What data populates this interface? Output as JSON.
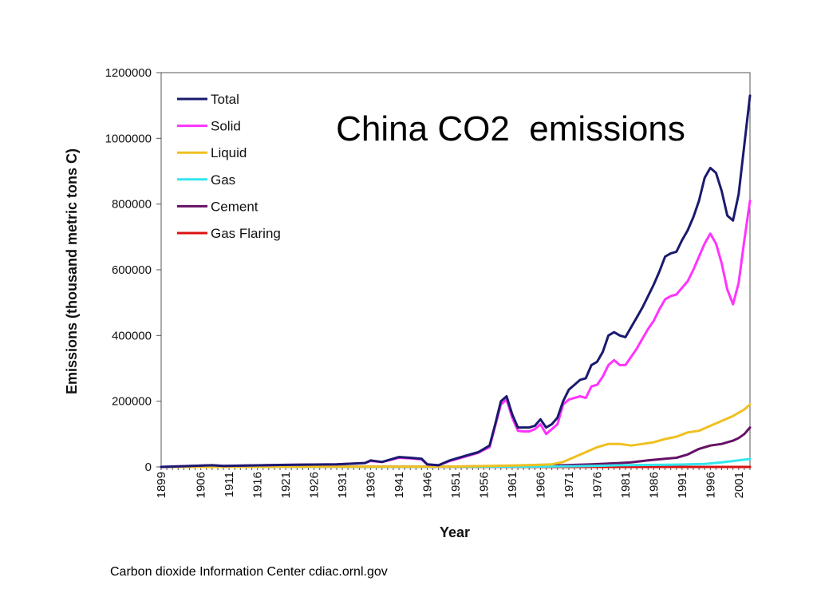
{
  "source_note": "Carbon dioxide Information Center cdiac.ornl.gov",
  "chart_data": {
    "type": "line",
    "title": "China CO2  emissions",
    "xlabel": "Year",
    "ylabel": "Emissions (thousand metric tons C)",
    "ylim": [
      0,
      1200000
    ],
    "yticks": [
      0,
      200000,
      400000,
      600000,
      800000,
      1000000,
      1200000
    ],
    "xticks": [
      1899,
      1906,
      1911,
      1916,
      1921,
      1926,
      1931,
      1936,
      1941,
      1946,
      1951,
      1956,
      1961,
      1966,
      1971,
      1976,
      1981,
      1986,
      1991,
      1996,
      2001
    ],
    "xlim": [
      1899,
      2003
    ],
    "legend_position": "top-left",
    "grid": false,
    "series": [
      {
        "name": "Total",
        "color": "#1a1a6e",
        "x": [
          1899,
          1908,
          1910,
          1920,
          1930,
          1935,
          1936,
          1938,
          1941,
          1943,
          1945,
          1946,
          1948,
          1950,
          1952,
          1954,
          1955,
          1956,
          1957,
          1958,
          1959,
          1960,
          1961,
          1962,
          1963,
          1964,
          1965,
          1966,
          1967,
          1968,
          1969,
          1970,
          1971,
          1972,
          1973,
          1974,
          1975,
          1976,
          1977,
          1978,
          1979,
          1980,
          1981,
          1982,
          1983,
          1984,
          1985,
          1986,
          1987,
          1988,
          1989,
          1990,
          1991,
          1992,
          1993,
          1994,
          1995,
          1996,
          1997,
          1998,
          1999,
          2000,
          2001,
          2002,
          2003
        ],
        "y": [
          0,
          5000,
          3000,
          6000,
          8000,
          12000,
          20000,
          15000,
          30000,
          28000,
          25000,
          8000,
          5000,
          20000,
          30000,
          40000,
          45000,
          55000,
          65000,
          130000,
          200000,
          215000,
          160000,
          120000,
          120000,
          120000,
          125000,
          145000,
          120000,
          130000,
          150000,
          200000,
          235000,
          250000,
          265000,
          270000,
          310000,
          320000,
          350000,
          400000,
          410000,
          400000,
          395000,
          425000,
          455000,
          485000,
          520000,
          555000,
          595000,
          640000,
          650000,
          655000,
          690000,
          720000,
          760000,
          810000,
          880000,
          910000,
          895000,
          840000,
          765000,
          750000,
          830000,
          980000,
          1130000
        ]
      },
      {
        "name": "Solid",
        "color": "#ff33ff",
        "x": [
          1899,
          1908,
          1910,
          1920,
          1930,
          1935,
          1936,
          1938,
          1941,
          1943,
          1945,
          1946,
          1948,
          1950,
          1952,
          1954,
          1955,
          1956,
          1957,
          1958,
          1959,
          1960,
          1961,
          1962,
          1963,
          1964,
          1965,
          1966,
          1967,
          1968,
          1969,
          1970,
          1971,
          1972,
          1973,
          1974,
          1975,
          1976,
          1977,
          1978,
          1979,
          1980,
          1981,
          1982,
          1983,
          1984,
          1985,
          1986,
          1987,
          1988,
          1989,
          1990,
          1991,
          1992,
          1993,
          1994,
          1995,
          1996,
          1997,
          1998,
          1999,
          2000,
          2001,
          2002,
          2003
        ],
        "y": [
          0,
          5000,
          3000,
          6000,
          8000,
          12000,
          18000,
          15000,
          28000,
          26000,
          23000,
          7000,
          5000,
          18000,
          28000,
          38000,
          43000,
          52000,
          60000,
          125000,
          190000,
          205000,
          150000,
          110000,
          108000,
          108000,
          115000,
          130000,
          100000,
          115000,
          130000,
          190000,
          205000,
          210000,
          215000,
          210000,
          245000,
          250000,
          275000,
          310000,
          325000,
          310000,
          310000,
          335000,
          360000,
          390000,
          420000,
          445000,
          480000,
          510000,
          520000,
          525000,
          545000,
          565000,
          600000,
          640000,
          680000,
          710000,
          680000,
          620000,
          540000,
          495000,
          560000,
          690000,
          810000
        ]
      },
      {
        "name": "Liquid",
        "color": "#f0c020",
        "x": [
          1899,
          1950,
          1960,
          1965,
          1968,
          1970,
          1972,
          1974,
          1976,
          1978,
          1980,
          1982,
          1984,
          1986,
          1988,
          1990,
          1992,
          1994,
          1996,
          1998,
          2000,
          2002,
          2003
        ],
        "y": [
          0,
          1000,
          4000,
          6000,
          8000,
          15000,
          30000,
          45000,
          60000,
          70000,
          70000,
          65000,
          70000,
          75000,
          85000,
          92000,
          105000,
          110000,
          125000,
          140000,
          155000,
          175000,
          190000
        ]
      },
      {
        "name": "Gas",
        "color": "#33e6ee",
        "x": [
          1899,
          1960,
          1965,
          1970,
          1975,
          1980,
          1985,
          1990,
          1995,
          1998,
          2000,
          2002,
          2003
        ],
        "y": [
          0,
          500,
          1000,
          2000,
          3000,
          5000,
          6000,
          7000,
          9000,
          14000,
          18000,
          22000,
          24000
        ]
      },
      {
        "name": "Cement",
        "color": "#661166",
        "x": [
          1899,
          1950,
          1960,
          1965,
          1970,
          1975,
          1980,
          1982,
          1985,
          1988,
          1990,
          1992,
          1994,
          1996,
          1998,
          2000,
          2001,
          2002,
          2003
        ],
        "y": [
          0,
          1000,
          3000,
          3000,
          5000,
          8000,
          12000,
          14000,
          20000,
          25000,
          28000,
          38000,
          55000,
          65000,
          70000,
          80000,
          88000,
          100000,
          120000
        ]
      },
      {
        "name": "Gas Flaring",
        "color": "#dd1111",
        "x": [
          1899,
          2003
        ],
        "y": [
          0,
          0
        ]
      }
    ]
  }
}
